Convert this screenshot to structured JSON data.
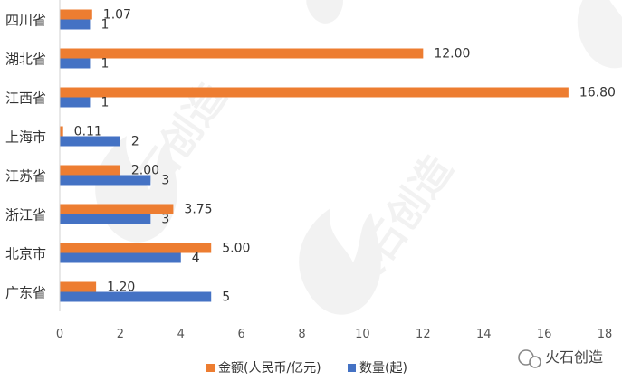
{
  "chart_data": {
    "type": "bar",
    "orientation": "horizontal",
    "categories": [
      "四川省",
      "湖北省",
      "江西省",
      "上海市",
      "江苏省",
      "浙江省",
      "北京市",
      "广东省"
    ],
    "series": [
      {
        "name": "金额(人民币/亿元)",
        "color": "#ED7D31",
        "values": [
          1.07,
          12.0,
          16.8,
          0.11,
          2.0,
          3.75,
          5.0,
          1.2
        ],
        "labels": [
          "1.07",
          "12.00",
          "16.80",
          "0.11",
          "2.00",
          "3.75",
          "5.00",
          "1.20"
        ]
      },
      {
        "name": "数量(起)",
        "color": "#4472C4",
        "values": [
          1,
          1,
          1,
          2,
          3,
          3,
          4,
          5
        ],
        "labels": [
          "1",
          "1",
          "1",
          "2",
          "3",
          "3",
          "4",
          "5"
        ]
      }
    ],
    "xlim": [
      0,
      18
    ],
    "xticks": [
      "0",
      "2",
      "4",
      "6",
      "8",
      "10",
      "12",
      "14",
      "16",
      "18"
    ],
    "grid": false,
    "legend_position": "bottom"
  },
  "watermark": {
    "text": "火石创造",
    "logo_icon": "flame-logo-icon"
  },
  "footer_brand": {
    "text": "火石创造",
    "icon": "wechat-icon"
  }
}
